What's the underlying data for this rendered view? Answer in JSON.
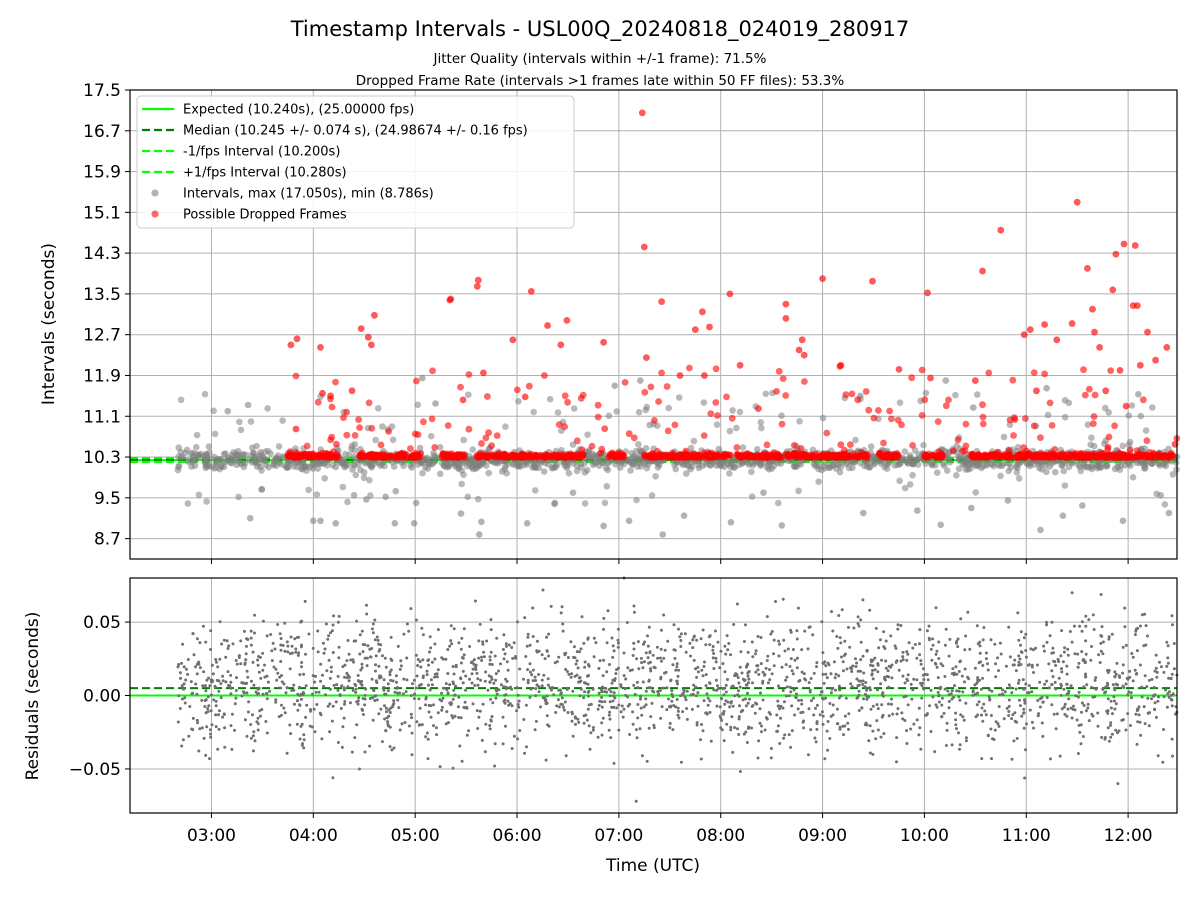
{
  "figure": {
    "title": "Timestamp Intervals - USL00Q_20240818_024019_280917",
    "subtitle_1": "Jitter Quality (intervals within +/-1 frame): 71.5%",
    "subtitle_2": "Dropped Frame Rate (intervals >1 frames late within 50 FF files): 53.3%",
    "xlabel": "Time (UTC)"
  },
  "colors": {
    "expected": "#00ff00",
    "median": "#008000",
    "interval_band": "#00ff00",
    "intervals": "#808080",
    "dropped": "#ff0000",
    "residuals": "#707070",
    "grid": "#b0b0b0"
  },
  "chart_data": [
    {
      "type": "scatter",
      "name": "intervals",
      "ylabel": "Intervals (seconds)",
      "ylim": [
        8.3,
        17.5
      ],
      "y_ticks": [
        "8.7",
        "9.5",
        "10.3",
        "11.1",
        "11.9",
        "12.7",
        "13.5",
        "14.3",
        "15.1",
        "15.9",
        "16.7",
        "17.5"
      ],
      "x_range_hours": [
        2.2,
        12.48
      ],
      "x_ticks": [
        "03:00",
        "04:00",
        "05:00",
        "06:00",
        "07:00",
        "08:00",
        "09:00",
        "10:00",
        "11:00",
        "12:00"
      ],
      "grid": true,
      "legend_position": "top-left",
      "legend": [
        "Expected (10.240s), (25.00000 fps)",
        "Median (10.245 +/- 0.074 s), (24.98674 +/- 0.16 fps)",
        "-1/fps Interval (10.200s)",
        "+1/fps Interval (10.280s)",
        "Intervals, max (17.050s), min (8.786s)",
        "Possible Dropped Frames"
      ],
      "reference_lines": {
        "expected": 10.24,
        "median": 10.245,
        "minus_1fps": 10.2,
        "plus_1fps": 10.28
      },
      "data_range_hours": [
        2.67,
        12.48
      ],
      "max": 17.05,
      "min": 8.786,
      "dropped_points_sample": [
        [
          3.78,
          12.5
        ],
        [
          3.84,
          12.62
        ],
        [
          3.83,
          10.85
        ],
        [
          4.07,
          12.45
        ],
        [
          4.09,
          11.55
        ],
        [
          4.17,
          11.5
        ],
        [
          4.47,
          12.82
        ],
        [
          4.54,
          12.65
        ],
        [
          4.57,
          12.5
        ],
        [
          4.6,
          13.08
        ],
        [
          4.38,
          11.6
        ],
        [
          5.35,
          13.4
        ],
        [
          5.34,
          13.38
        ],
        [
          5.47,
          11.42
        ],
        [
          5.61,
          13.65
        ],
        [
          5.62,
          13.77
        ],
        [
          5.67,
          11.95
        ],
        [
          5.96,
          12.6
        ],
        [
          6.08,
          11.48
        ],
        [
          6.14,
          13.55
        ],
        [
          6.3,
          12.88
        ],
        [
          6.43,
          12.5
        ],
        [
          6.49,
          12.98
        ],
        [
          6.85,
          12.55
        ],
        [
          7.23,
          17.05
        ],
        [
          7.25,
          14.42
        ],
        [
          7.27,
          12.25
        ],
        [
          7.42,
          13.35
        ],
        [
          7.6,
          11.9
        ],
        [
          7.75,
          12.8
        ],
        [
          7.82,
          13.15
        ],
        [
          7.84,
          11.9
        ],
        [
          7.89,
          12.85
        ],
        [
          8.09,
          13.5
        ],
        [
          8.19,
          12.1
        ],
        [
          8.37,
          11.25
        ],
        [
          8.64,
          13.3
        ],
        [
          8.64,
          13.02
        ],
        [
          8.77,
          12.4
        ],
        [
          8.8,
          12.6
        ],
        [
          8.82,
          12.3
        ],
        [
          9.18,
          12.1
        ],
        [
          9.17,
          12.08
        ],
        [
          9.0,
          13.8
        ],
        [
          9.49,
          13.75
        ],
        [
          9.75,
          12.02
        ],
        [
          10.03,
          13.52
        ],
        [
          10.06,
          11.85
        ],
        [
          10.5,
          11.8
        ],
        [
          10.53,
          10.35
        ],
        [
          10.57,
          13.95
        ],
        [
          10.75,
          14.75
        ],
        [
          10.98,
          12.7
        ],
        [
          11.04,
          12.8
        ],
        [
          11.1,
          11.6
        ],
        [
          11.18,
          12.9
        ],
        [
          11.3,
          12.6
        ],
        [
          11.45,
          12.92
        ],
        [
          11.5,
          15.3
        ],
        [
          11.6,
          14.0
        ],
        [
          11.65,
          13.2
        ],
        [
          11.67,
          12.75
        ],
        [
          11.72,
          12.45
        ],
        [
          11.78,
          11.6
        ],
        [
          11.85,
          13.58
        ],
        [
          11.88,
          14.28
        ],
        [
          11.92,
          12.0
        ],
        [
          11.96,
          14.48
        ],
        [
          11.98,
          11.3
        ],
        [
          12.07,
          14.45
        ],
        [
          12.05,
          13.27
        ],
        [
          12.09,
          13.27
        ],
        [
          12.12,
          12.1
        ],
        [
          12.19,
          12.75
        ],
        [
          12.27,
          12.2
        ],
        [
          12.38,
          12.45
        ],
        [
          12.46,
          10.55
        ]
      ],
      "interval_points_sample": [
        [
          3.16,
          11.2
        ],
        [
          3.36,
          11.32
        ],
        [
          3.38,
          9.1
        ],
        [
          4.0,
          9.05
        ],
        [
          4.07,
          9.05
        ],
        [
          4.22,
          9.0
        ],
        [
          4.4,
          9.55
        ],
        [
          4.52,
          9.47
        ],
        [
          4.71,
          9.52
        ],
        [
          4.8,
          9.0
        ],
        [
          4.81,
          9.63
        ],
        [
          4.99,
          9.0
        ],
        [
          5.01,
          9.4
        ],
        [
          5.07,
          11.85
        ],
        [
          5.2,
          11.35
        ],
        [
          5.45,
          9.19
        ],
        [
          5.65,
          9.03
        ],
        [
          5.63,
          8.78
        ],
        [
          6.1,
          9.0
        ],
        [
          6.37,
          9.4
        ],
        [
          6.55,
          9.6
        ],
        [
          6.85,
          8.95
        ],
        [
          6.96,
          11.7
        ],
        [
          7.1,
          9.05
        ],
        [
          7.21,
          11.8
        ],
        [
          7.43,
          8.78
        ],
        [
          7.64,
          9.15
        ],
        [
          8.1,
          9.02
        ],
        [
          8.6,
          8.96
        ],
        [
          8.42,
          9.6
        ],
        [
          9.37,
          11.5
        ],
        [
          9.4,
          9.2
        ],
        [
          9.93,
          9.25
        ],
        [
          10.16,
          8.97
        ],
        [
          10.21,
          11.8
        ],
        [
          10.48,
          11.27
        ],
        [
          10.46,
          9.3
        ],
        [
          10.82,
          9.45
        ],
        [
          11.2,
          11.65
        ],
        [
          11.14,
          8.87
        ],
        [
          11.36,
          9.15
        ],
        [
          11.55,
          9.35
        ],
        [
          11.95,
          9.05
        ],
        [
          12.1,
          11.53
        ],
        [
          12.32,
          9.55
        ],
        [
          12.4,
          9.2
        ]
      ]
    },
    {
      "type": "scatter",
      "name": "residuals",
      "ylabel": "Residuals (seconds)",
      "ylim": [
        -0.08,
        0.08
      ],
      "y_ticks": [
        "−0.05",
        "0.00",
        "0.05"
      ],
      "y_tick_values": [
        -0.05,
        0.0,
        0.05
      ],
      "x_range_hours": [
        2.2,
        12.48
      ],
      "x_ticks": [
        "03:00",
        "04:00",
        "05:00",
        "06:00",
        "07:00",
        "08:00",
        "09:00",
        "10:00",
        "11:00",
        "12:00"
      ],
      "grid": true,
      "reference_lines": {
        "expected": 0.0,
        "median": 0.005
      },
      "data_range_hours": [
        2.67,
        12.48
      ],
      "spread_std": 0.022,
      "notable_points": [
        [
          7.05,
          0.08
        ],
        [
          7.17,
          -0.072
        ],
        [
          11.9,
          -0.06
        ],
        [
          11.45,
          0.07
        ],
        [
          5.78,
          -0.048
        ]
      ]
    }
  ]
}
